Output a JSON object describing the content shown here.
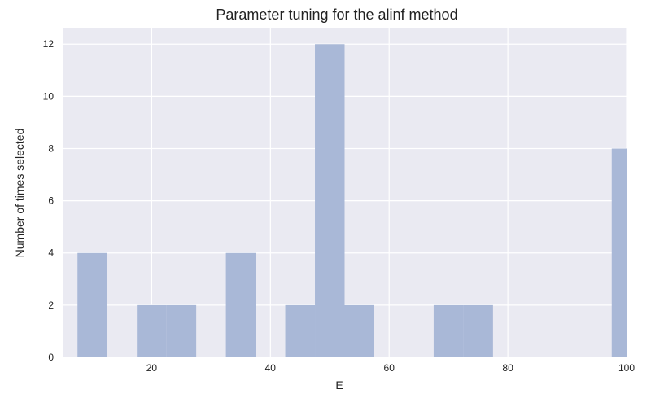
{
  "chart_data": {
    "type": "bar",
    "title": "Parameter tuning for the alinf method",
    "xlabel": "E",
    "ylabel": "Number of times selected",
    "xlim": [
      5,
      100
    ],
    "ylim": [
      0,
      12.6
    ],
    "x_ticks": [
      20,
      40,
      60,
      80,
      100
    ],
    "y_ticks": [
      0,
      2,
      4,
      6,
      8,
      10,
      12
    ],
    "grid": true,
    "bar_color": "#a9b8d7",
    "background_color": "#eaeaf2",
    "bins": [
      {
        "x0": 7.5,
        "x1": 12.5,
        "value": 4
      },
      {
        "x0": 12.5,
        "x1": 17.5,
        "value": 0
      },
      {
        "x0": 17.5,
        "x1": 22.5,
        "value": 2
      },
      {
        "x0": 22.5,
        "x1": 27.5,
        "value": 2
      },
      {
        "x0": 27.5,
        "x1": 32.5,
        "value": 0
      },
      {
        "x0": 32.5,
        "x1": 37.5,
        "value": 4
      },
      {
        "x0": 37.5,
        "x1": 42.5,
        "value": 0
      },
      {
        "x0": 42.5,
        "x1": 47.5,
        "value": 2
      },
      {
        "x0": 47.5,
        "x1": 52.5,
        "value": 12
      },
      {
        "x0": 52.5,
        "x1": 57.5,
        "value": 2
      },
      {
        "x0": 57.5,
        "x1": 62.5,
        "value": 0
      },
      {
        "x0": 62.5,
        "x1": 67.5,
        "value": 0
      },
      {
        "x0": 67.5,
        "x1": 72.5,
        "value": 2
      },
      {
        "x0": 72.5,
        "x1": 77.5,
        "value": 2
      },
      {
        "x0": 77.5,
        "x1": 82.5,
        "value": 0
      },
      {
        "x0": 82.5,
        "x1": 87.5,
        "value": 0
      },
      {
        "x0": 87.5,
        "x1": 92.5,
        "value": 0
      },
      {
        "x0": 92.5,
        "x1": 97.5,
        "value": 0
      },
      {
        "x0": 97.5,
        "x1": 102.5,
        "value": 8
      }
    ]
  }
}
